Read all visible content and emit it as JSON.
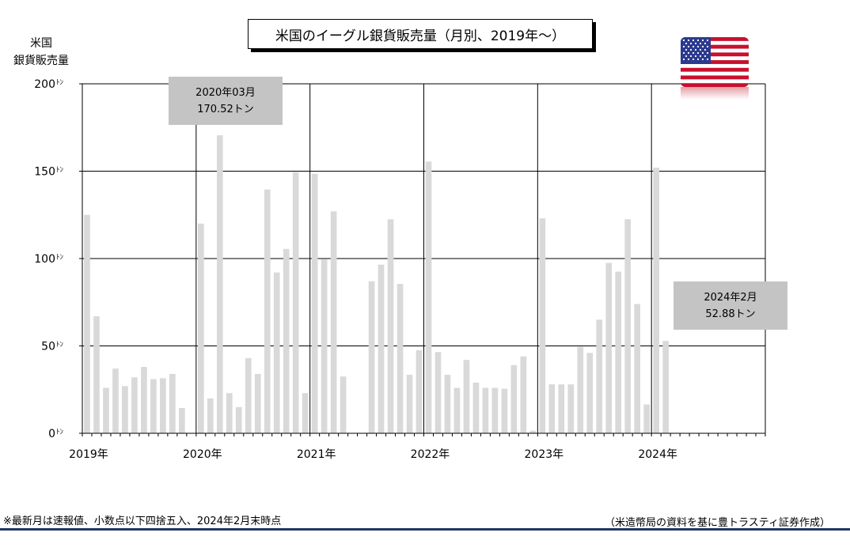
{
  "title": "米国のイーグル銀貨販売量（月別、2019年～）",
  "ylabel_line1": "米国",
  "ylabel_line2": "銀貨販売量",
  "callouts": [
    {
      "line1": "2020年03月",
      "line2": "170.52トン"
    },
    {
      "line1": "2024年2月",
      "line2": "52.88トン"
    }
  ],
  "footnote": "※最新月は速報値、小数点以下四捨五入、2024年2月末時点",
  "source": "（米造幣局の資料を基に豊トラスティ証券作成）",
  "colors": {
    "bar": "#d9d9d9",
    "grid": "#000000",
    "callout_bg": "#c4c4c4",
    "rule": "#1f3864"
  },
  "flag_icon": "us-flag-icon",
  "chart_data": {
    "type": "bar",
    "title": "米国のイーグル銀貨販売量（月別、2019年～）",
    "ylabel": "米国 銀貨販売量",
    "yunit": "ﾄﾝ",
    "ylim": [
      0,
      200
    ],
    "yticks": [
      0,
      50,
      100,
      150,
      200
    ],
    "grid": true,
    "year_labels": [
      "2019年",
      "2020年",
      "2021年",
      "2022年",
      "2023年",
      "2024年"
    ],
    "months_per_year": 12,
    "values": [
      125,
      67,
      26,
      37,
      27,
      32,
      38,
      31,
      31.5,
      34,
      14.5,
      0,
      120,
      20,
      170.52,
      23,
      15,
      43,
      34,
      139.5,
      92,
      105.5,
      149.5,
      23,
      148.5,
      99.5,
      127,
      32.5,
      0,
      0,
      87,
      96.5,
      122.5,
      85.5,
      33.5,
      47.5,
      155.5,
      46.5,
      33.5,
      26,
      42,
      29,
      26,
      26,
      25.5,
      39,
      44,
      1.5,
      123,
      28,
      28,
      28,
      49.5,
      46,
      65,
      97.5,
      92.5,
      122.5,
      74,
      16.5,
      152,
      52.88
    ]
  }
}
